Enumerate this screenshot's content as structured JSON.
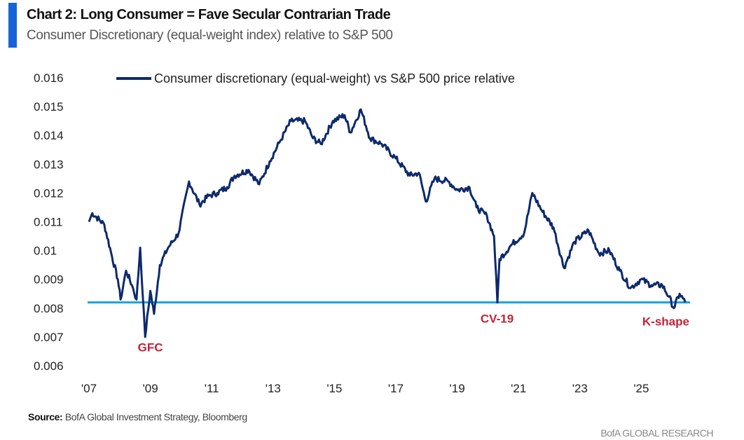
{
  "header": {
    "title": "Chart 2: Long Consumer = Fave Secular Contrarian Trade",
    "subtitle": "Consumer Discretionary (equal-weight index) relative to S&P 500"
  },
  "footer": {
    "source_label": "Source:",
    "source_text": " BofA Global Investment Strategy, Bloomberg",
    "brand": "BofA GLOBAL RESEARCH"
  },
  "colors": {
    "series": "#0d2a6b",
    "support": "#1aa3e0",
    "annotation": "#c4223a",
    "accent_bar": "#1565d8"
  },
  "chart_data": {
    "type": "line",
    "title": "Chart 2: Long Consumer = Fave Secular Contrarian Trade",
    "xlabel": "",
    "ylabel": "",
    "ylim": [
      0.006,
      0.016
    ],
    "xlim": [
      2007,
      2026.6
    ],
    "yticks": [
      "0.016",
      "0.015",
      "0.014",
      "0.013",
      "0.012",
      "0.011",
      "0.01",
      "0.009",
      "0.008",
      "0.007",
      "0.006"
    ],
    "ytick_values": [
      0.016,
      0.015,
      0.014,
      0.013,
      0.012,
      0.011,
      0.01,
      0.009,
      0.008,
      0.007,
      0.006
    ],
    "xticks": [
      "'07",
      "'09",
      "'11",
      "'13",
      "'15",
      "'17",
      "'19",
      "'21",
      "'23",
      "'25"
    ],
    "xtick_values": [
      2007,
      2009,
      2011,
      2013,
      2015,
      2017,
      2019,
      2021,
      2023,
      2025
    ],
    "legend": {
      "label": "Consumer discretionary (equal-weight) vs S&P 500 price relative",
      "placement": "top-left"
    },
    "series": [
      {
        "name": "Consumer discretionary (equal-weight) vs S&P 500 price relative",
        "x": [
          2007.0,
          2007.11,
          2007.5,
          2007.75,
          2007.94,
          2008.03,
          2008.21,
          2008.4,
          2008.55,
          2008.67,
          2008.75,
          2008.83,
          2009.0,
          2009.12,
          2009.31,
          2009.58,
          2009.92,
          2010.26,
          2010.6,
          2010.9,
          2011.18,
          2011.5,
          2011.75,
          2012.2,
          2012.55,
          2012.89,
          2013.23,
          2013.58,
          2014.04,
          2014.3,
          2014.56,
          2014.95,
          2015.33,
          2015.52,
          2015.86,
          2016.16,
          2016.54,
          2017.0,
          2017.46,
          2017.75,
          2017.98,
          2018.26,
          2018.71,
          2019.01,
          2019.4,
          2019.63,
          2019.97,
          2020.2,
          2020.31,
          2020.38,
          2020.77,
          2021.18,
          2021.45,
          2021.75,
          2022.14,
          2022.48,
          2022.82,
          2023.28,
          2023.62,
          2023.96,
          2024.3,
          2024.65,
          2024.99,
          2025.33,
          2025.68,
          2025.9,
          2026.06,
          2026.25,
          2026.43
        ],
        "values": [
          0.011,
          0.0113,
          0.0109,
          0.0098,
          0.009,
          0.0083,
          0.0093,
          0.0088,
          0.0083,
          0.0101,
          0.0085,
          0.007,
          0.0086,
          0.0078,
          0.0095,
          0.0101,
          0.0106,
          0.0124,
          0.0116,
          0.0119,
          0.012,
          0.0122,
          0.0126,
          0.0128,
          0.0123,
          0.0131,
          0.0138,
          0.0145,
          0.0145,
          0.0139,
          0.0137,
          0.0145,
          0.0147,
          0.0141,
          0.0149,
          0.0139,
          0.0137,
          0.0132,
          0.0126,
          0.0127,
          0.0117,
          0.0125,
          0.0124,
          0.0121,
          0.0122,
          0.0115,
          0.0112,
          0.0105,
          0.0082,
          0.0097,
          0.0102,
          0.0106,
          0.012,
          0.0114,
          0.0108,
          0.0094,
          0.0103,
          0.0107,
          0.0099,
          0.01,
          0.0093,
          0.0087,
          0.009,
          0.0088,
          0.0088,
          0.0084,
          0.008,
          0.0085,
          0.0082
        ]
      }
    ],
    "support_line": {
      "value": 0.0082
    },
    "annotations": [
      {
        "label": "GFC",
        "x": 2009.0,
        "y": 0.0065
      },
      {
        "label": "CV-19",
        "x": 2020.3,
        "y": 0.0075
      },
      {
        "label": "K-shape",
        "x": 2025.8,
        "y": 0.0074
      }
    ]
  }
}
